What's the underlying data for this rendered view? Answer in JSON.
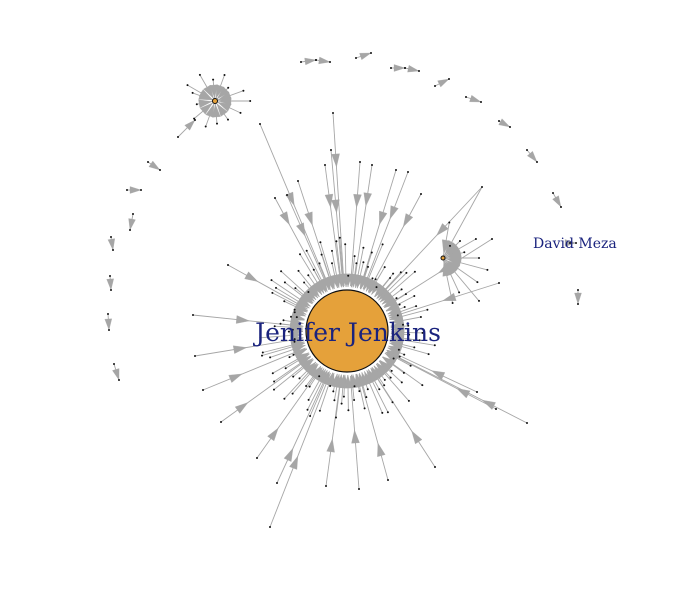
{
  "graph": {
    "type": "network",
    "layout": "force-directed",
    "hub": {
      "label": "Jenifer Jenkins",
      "color": "#e5a13a"
    },
    "labeled_nodes": [
      {
        "label": "David Meza"
      }
    ],
    "colors": {
      "edge": "#a6a6a6",
      "node": "#111111",
      "hub_fill": "#e5a13a",
      "label": "#1a237e"
    }
  }
}
